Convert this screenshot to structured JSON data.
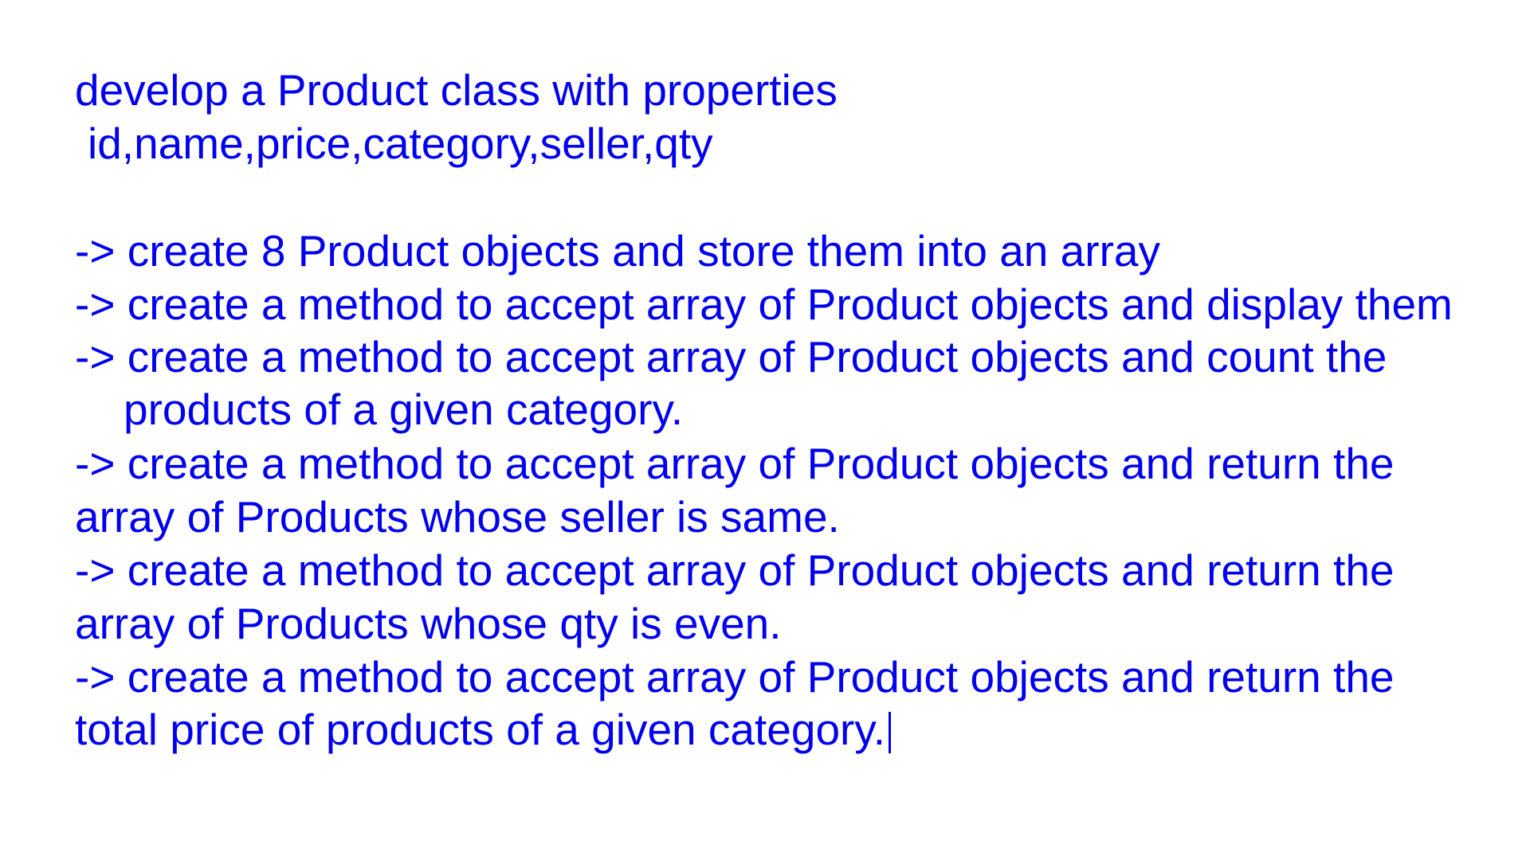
{
  "document": {
    "lines": [
      "develop a Product class with properties",
      "id,name,price,category,seller,qty",
      "-> create 8 Product objects and store them into an array",
      "-> create a method to accept array of Product objects and display them",
      "-> create a method to accept array of Product objects and count the",
      "products of a given category.",
      "-> create a method to accept array of Product objects and return the",
      "array of Products whose seller is same.",
      "-> create a method to accept array of Product objects and return the",
      "array of Products whose qty is even.",
      "-> create a method to accept array of Product objects and return the",
      "total price of products of a given category."
    ]
  }
}
